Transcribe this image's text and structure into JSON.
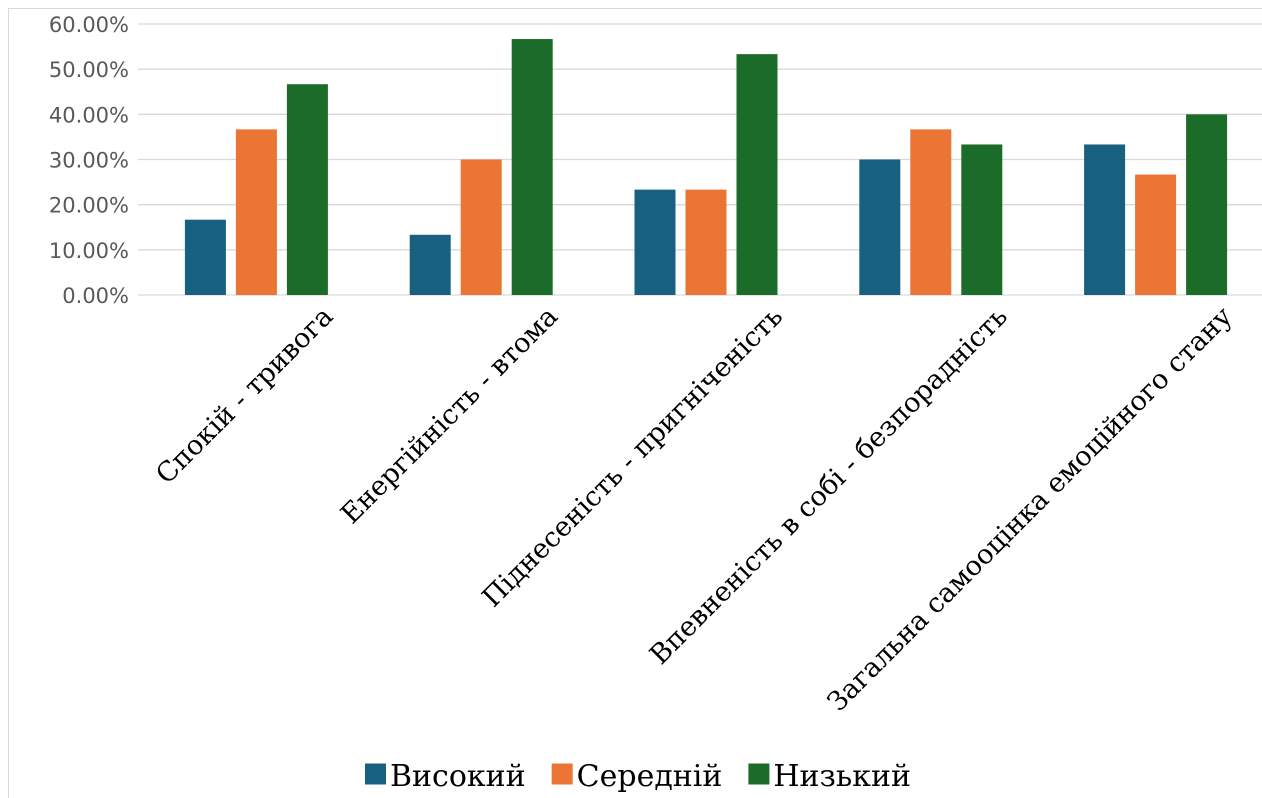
{
  "chart_data": {
    "type": "bar",
    "title": "",
    "xlabel": "",
    "ylabel": "",
    "ylim": [
      0,
      60
    ],
    "y_ticks": [
      "0.00%",
      "10.00%",
      "20.00%",
      "30.00%",
      "40.00%",
      "50.00%",
      "60.00%"
    ],
    "y_tick_values": [
      0,
      10,
      20,
      30,
      40,
      50,
      60
    ],
    "grid": true,
    "legend_position": "bottom",
    "categories": [
      "Спокій - тривога",
      "Енергійність - втома",
      "Піднесеність - пригніченість",
      "Впевненість в собі - безпорадність",
      "Загальна самооцінка емоційного стану"
    ],
    "series": [
      {
        "name": "Високий",
        "color": "#17607f",
        "values": [
          16.67,
          13.33,
          23.33,
          30.0,
          33.33
        ]
      },
      {
        "name": "Середній",
        "color": "#ea7535",
        "values": [
          36.67,
          30.0,
          23.33,
          36.67,
          26.67
        ]
      },
      {
        "name": "Низький",
        "color": "#1b6b29",
        "values": [
          46.67,
          56.67,
          53.33,
          33.33,
          40.0
        ]
      }
    ]
  }
}
